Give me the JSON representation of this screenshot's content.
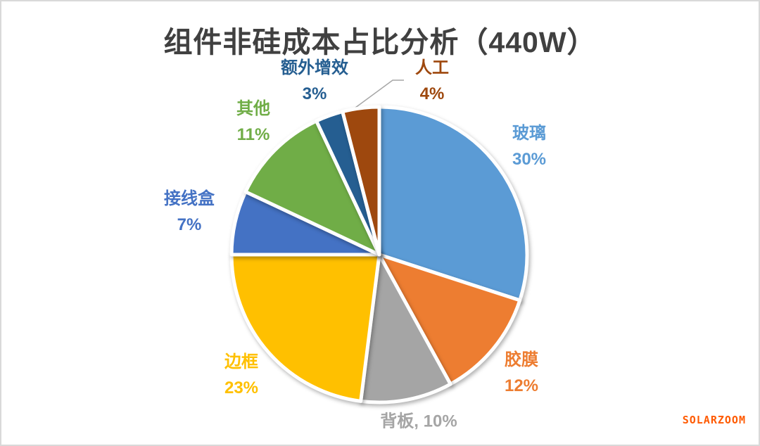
{
  "chart_data": {
    "type": "pie",
    "title": "组件非硅成本占比分析（440W）",
    "title_color": "#404040",
    "start_angle_deg": 90,
    "direction": "clockwise",
    "legend": "none",
    "labels_position": "outside",
    "unit": "%",
    "slices": [
      {
        "key": "glass",
        "name": "玻璃",
        "value": 30,
        "pct_label": "30%",
        "color": "#5B9BD5"
      },
      {
        "key": "eva-film",
        "name": "胶膜",
        "value": 12,
        "pct_label": "12%",
        "color": "#ED7D31"
      },
      {
        "key": "backsheet",
        "name": "背板",
        "value": 10,
        "pct_label": "10%",
        "inline_label": "背板, 10%",
        "color": "#A5A5A5"
      },
      {
        "key": "frame",
        "name": "边框",
        "value": 23,
        "pct_label": "23%",
        "color": "#FFC000"
      },
      {
        "key": "junction-box",
        "name": "接线盒",
        "value": 7,
        "pct_label": "7%",
        "color": "#4472C4"
      },
      {
        "key": "other",
        "name": "其他",
        "value": 11,
        "pct_label": "11%",
        "color": "#70AD47"
      },
      {
        "key": "extra-gain",
        "name": "额外增效",
        "value": 3,
        "pct_label": "3%",
        "color": "#255E91"
      },
      {
        "key": "labor",
        "name": "人工",
        "value": 4,
        "pct_label": "4%",
        "color": "#9E480E"
      }
    ],
    "leader_line": {
      "for": "人工",
      "color": "#A6A6A6"
    }
  },
  "watermark": {
    "text": "SOLARZOOM",
    "color": "#FF5A00"
  }
}
